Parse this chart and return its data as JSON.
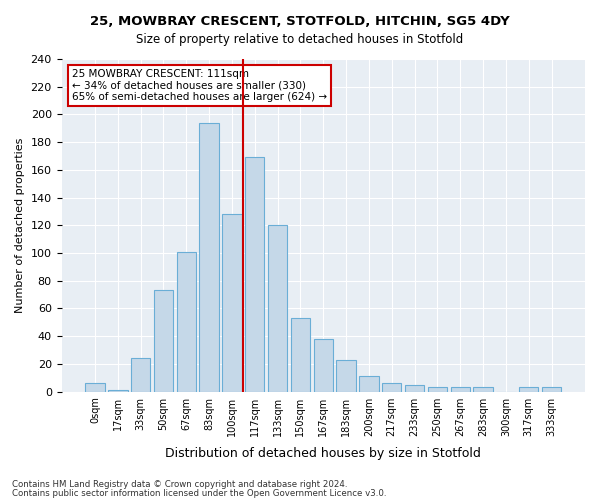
{
  "title1": "25, MOWBRAY CRESCENT, STOTFOLD, HITCHIN, SG5 4DY",
  "title2": "Size of property relative to detached houses in Stotfold",
  "xlabel": "Distribution of detached houses by size in Stotfold",
  "ylabel": "Number of detached properties",
  "annotation_line1": "25 MOWBRAY CRESCENT: 111sqm",
  "annotation_line2": "← 34% of detached houses are smaller (330)",
  "annotation_line3": "65% of semi-detached houses are larger (624) →",
  "footer1": "Contains HM Land Registry data © Crown copyright and database right 2024.",
  "footer2": "Contains public sector information licensed under the Open Government Licence v3.0.",
  "bar_labels": [
    "0sqm",
    "17sqm",
    "33sqm",
    "50sqm",
    "67sqm",
    "83sqm",
    "100sqm",
    "117sqm",
    "133sqm",
    "150sqm",
    "167sqm",
    "183sqm",
    "200sqm",
    "217sqm",
    "233sqm",
    "250sqm",
    "267sqm",
    "283sqm",
    "300sqm",
    "317sqm",
    "333sqm"
  ],
  "bar_values": [
    6,
    1,
    24,
    73,
    101,
    194,
    128,
    169,
    120,
    53,
    38,
    23,
    11,
    6,
    5,
    3,
    3,
    3,
    0,
    3,
    3
  ],
  "bar_color": "#c5d8e8",
  "bar_edge_color": "#6aaed6",
  "vline_color": "#cc0000",
  "annotation_box_color": "#cc0000",
  "background_color": "#e8eef4",
  "ylim": [
    0,
    240
  ],
  "yticks": [
    0,
    20,
    40,
    60,
    80,
    100,
    120,
    140,
    160,
    180,
    200,
    220,
    240
  ]
}
